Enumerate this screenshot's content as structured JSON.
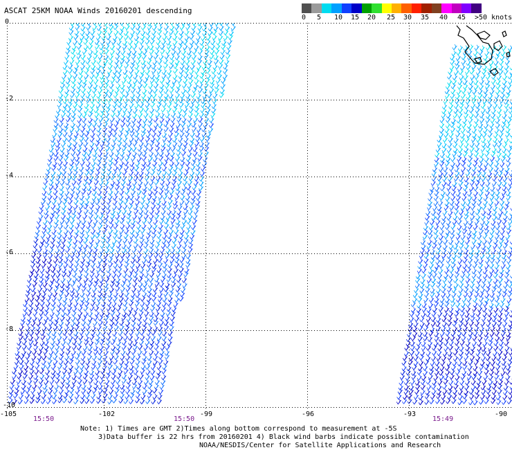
{
  "title": "ASCAT 25KM NOAA Winds 20160201 descending",
  "legend": {
    "colors": [
      "#505050",
      "#9a9a9a",
      "#00dcf0",
      "#00a0ff",
      "#1040ff",
      "#0000c8",
      "#00a000",
      "#30e030",
      "#ffff00",
      "#ffb000",
      "#ff6000",
      "#ff2000",
      "#a02000",
      "#804020",
      "#ff00ff",
      "#c000c0",
      "#8000ff",
      "#400080"
    ],
    "labels": [
      "0",
      "5",
      "10",
      "15",
      "20",
      "25",
      "30",
      "35",
      "40",
      "45",
      ">50 knots"
    ]
  },
  "axes": {
    "y_ticks": [
      "0",
      "-2",
      "-4",
      "-6",
      "-8",
      "-10"
    ],
    "x_ticks": [
      "-105",
      "-102",
      "-99",
      "-96",
      "-93",
      "-90"
    ]
  },
  "pass_times": [
    "15:50",
    "15:50",
    "15:49"
  ],
  "notes": [
    "Note: 1) Times are GMT 2)Times along bottom correspond to measurement at -5S",
    "3)Data buffer is 22 hrs from 20160201 4) Black wind barbs indicate possible contamination",
    "NOAA/NESDIS/Center for Satellite Applications and Research"
  ]
}
